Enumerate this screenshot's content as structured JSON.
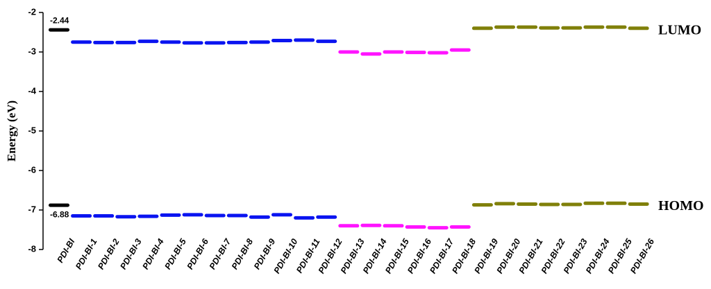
{
  "chart_data": {
    "type": "level",
    "y_label": "Energy (eV)",
    "categories": [
      "PDI-BI",
      "PDI-BI-1",
      "PDI-BI-2",
      "PDI-BI-3",
      "PDI-BI-4",
      "PDI-BI-5",
      "PDI-BI-6",
      "PDI-BI-7",
      "PDI-BI-8",
      "PDI-BI-9",
      "PDI-BI-10",
      "PDI-BI-11",
      "PDI-BI-12",
      "PDI-BI-13",
      "PDI-BI-14",
      "PDI-BI-15",
      "PDI-BI-16",
      "PDI-BI-17",
      "PDI-BI-18",
      "PDI-BI-19",
      "PDI-BI-20",
      "PDI-BI-21",
      "PDI-BI-22",
      "PDI-BI-23",
      "PDI-BI-24",
      "PDI-BI-25",
      "PDI-BI-26"
    ],
    "colors": [
      "#000000",
      "#0a14f0",
      "#0a14f0",
      "#0a14f0",
      "#0a14f0",
      "#0a14f0",
      "#0a14f0",
      "#0a14f0",
      "#0a14f0",
      "#0a14f0",
      "#0a14f0",
      "#0a14f0",
      "#0a14f0",
      "#ff14ff",
      "#ff14ff",
      "#ff14ff",
      "#ff14ff",
      "#ff14ff",
      "#ff14ff",
      "#80800a",
      "#80800a",
      "#80800a",
      "#80800a",
      "#80800a",
      "#80800a",
      "#80800a",
      "#80800a"
    ],
    "series": [
      {
        "name": "LUMO",
        "values": [
          -2.44,
          -2.75,
          -2.76,
          -2.76,
          -2.73,
          -2.75,
          -2.77,
          -2.77,
          -2.76,
          -2.75,
          -2.71,
          -2.7,
          -2.73,
          -3.0,
          -3.05,
          -3.0,
          -3.01,
          -3.02,
          -2.95,
          -2.4,
          -2.37,
          -2.37,
          -2.39,
          -2.39,
          -2.37,
          -2.37,
          -2.4
        ],
        "value_labels": [
          "-2.44",
          null,
          null,
          null,
          null,
          null,
          null,
          null,
          null,
          null,
          null,
          null,
          null,
          null,
          null,
          null,
          null,
          null,
          null,
          null,
          null,
          null,
          null,
          null,
          null,
          null,
          null
        ]
      },
      {
        "name": "HOMO",
        "values": [
          -6.88,
          -7.15,
          -7.15,
          -7.17,
          -7.16,
          -7.13,
          -7.12,
          -7.14,
          -7.14,
          -7.18,
          -7.12,
          -7.2,
          -7.18,
          -7.4,
          -7.39,
          -7.4,
          -7.43,
          -7.45,
          -7.43,
          -6.87,
          -6.84,
          -6.85,
          -6.86,
          -6.86,
          -6.83,
          -6.83,
          -6.85
        ],
        "value_labels": [
          "-6.88",
          null,
          null,
          null,
          null,
          null,
          null,
          null,
          null,
          null,
          null,
          null,
          null,
          null,
          null,
          null,
          null,
          null,
          null,
          null,
          null,
          null,
          null,
          null,
          null,
          null,
          null
        ]
      }
    ],
    "ylim": [
      -8,
      -2
    ],
    "yticks": [
      -2,
      -3,
      -4,
      -5,
      -6,
      -7,
      -8
    ]
  }
}
